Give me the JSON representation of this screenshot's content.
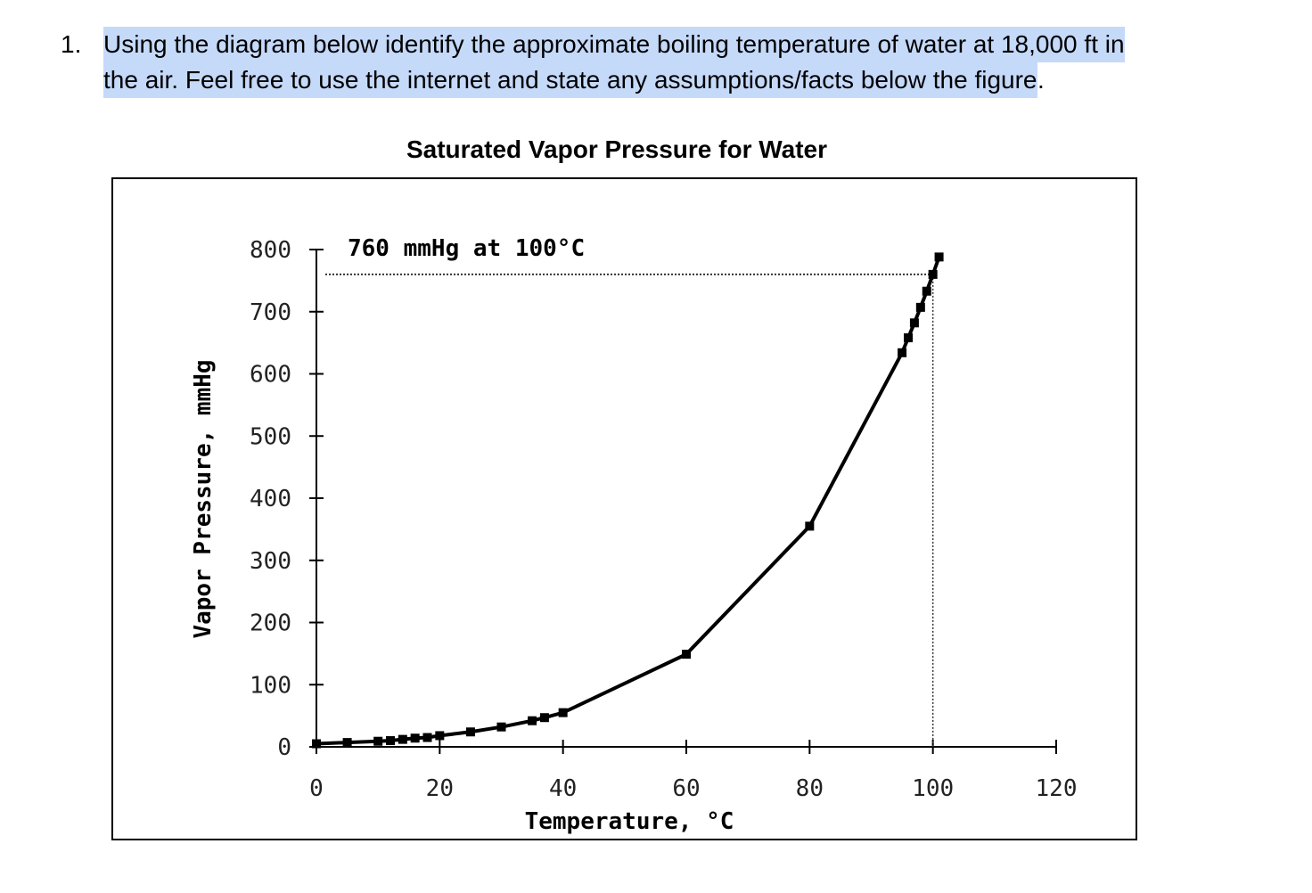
{
  "question": {
    "number": "1.",
    "line1": "Using the diagram below identify the approximate boiling temperature of water at 18,000 ft in",
    "line2": "the air.  Feel free to use the internet and state any assumptions/facts below the figure",
    "line2_tail": ".",
    "highlight_color": "#c5d9f9"
  },
  "chart_data": {
    "type": "line",
    "title": "Saturated Vapor Pressure for Water",
    "xlabel": "Temperature, °C",
    "ylabel": "Vapor Pressure, mmHg",
    "xlim": [
      0,
      120
    ],
    "ylim": [
      0,
      800
    ],
    "x_ticks": [
      "0",
      "20",
      "40",
      "60",
      "80",
      "100",
      "120"
    ],
    "y_ticks": [
      "800",
      "700",
      "600",
      "500",
      "400",
      "300",
      "200",
      "100",
      "0"
    ],
    "annotation": "760 mmHg at 100°C",
    "reference": {
      "x": 100,
      "y": 760
    },
    "grid": false,
    "series": [
      {
        "x": [
          0,
          5,
          10,
          12,
          14,
          16,
          18,
          20,
          25,
          30,
          35,
          37,
          40,
          60,
          80,
          95,
          96,
          97,
          98,
          99,
          100,
          101
        ],
        "y": [
          5,
          7,
          9,
          10,
          12,
          14,
          15,
          18,
          24,
          32,
          42,
          47,
          55,
          149,
          355,
          634,
          658,
          682,
          707,
          733,
          760,
          788
        ]
      }
    ]
  }
}
